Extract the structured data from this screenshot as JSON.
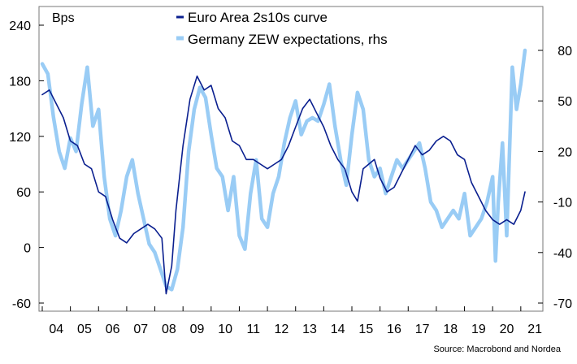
{
  "chart_data": {
    "type": "line",
    "unit_label": "Bps",
    "source": "Source: Macrobond and Nordea",
    "x_ticks": [
      "04",
      "05",
      "06",
      "07",
      "08",
      "09",
      "10",
      "11",
      "12",
      "13",
      "14",
      "15",
      "16",
      "17",
      "18",
      "19",
      "20",
      "21"
    ],
    "y_left": {
      "ticks": [
        -60,
        0,
        60,
        120,
        180,
        240
      ],
      "lim": [
        -60,
        240
      ]
    },
    "y_right": {
      "ticks": [
        -70,
        -40,
        -10,
        20,
        50,
        80
      ],
      "lim": [
        -70,
        90
      ]
    },
    "grid": false,
    "legend_position": "top",
    "series": [
      {
        "name": "Euro Area 2s10s curve",
        "axis": "left",
        "color": "#0a1f8f",
        "x": [
          2004.0,
          2004.25,
          2004.5,
          2004.75,
          2005.0,
          2005.25,
          2005.5,
          2005.75,
          2006.0,
          2006.25,
          2006.5,
          2006.75,
          2007.0,
          2007.25,
          2007.5,
          2007.75,
          2008.0,
          2008.25,
          2008.4,
          2008.6,
          2008.75,
          2009.0,
          2009.25,
          2009.5,
          2009.75,
          2010.0,
          2010.25,
          2010.5,
          2010.75,
          2011.0,
          2011.25,
          2011.5,
          2011.75,
          2012.0,
          2012.25,
          2012.5,
          2012.75,
          2013.0,
          2013.25,
          2013.5,
          2013.75,
          2014.0,
          2014.25,
          2014.5,
          2014.75,
          2015.0,
          2015.2,
          2015.4,
          2015.6,
          2015.8,
          2016.0,
          2016.25,
          2016.5,
          2016.75,
          2017.0,
          2017.25,
          2017.5,
          2017.75,
          2018.0,
          2018.25,
          2018.5,
          2018.75,
          2019.0,
          2019.25,
          2019.5,
          2019.75,
          2020.0,
          2020.25,
          2020.5,
          2020.75,
          2021.0,
          2021.15
        ],
        "values": [
          165,
          170,
          155,
          140,
          115,
          110,
          90,
          85,
          60,
          55,
          30,
          10,
          5,
          15,
          20,
          25,
          20,
          10,
          -50,
          -20,
          40,
          110,
          160,
          185,
          170,
          175,
          150,
          140,
          115,
          110,
          95,
          95,
          90,
          85,
          90,
          95,
          110,
          130,
          150,
          160,
          145,
          130,
          110,
          95,
          85,
          60,
          50,
          85,
          90,
          95,
          75,
          60,
          65,
          80,
          95,
          110,
          100,
          105,
          115,
          120,
          115,
          100,
          95,
          70,
          55,
          40,
          30,
          25,
          30,
          25,
          40,
          60
        ]
      },
      {
        "name": "Germany ZEW expectations, rhs",
        "axis": "right",
        "color": "#99ccf5",
        "x": [
          2004.0,
          2004.2,
          2004.4,
          2004.6,
          2004.8,
          2005.0,
          2005.2,
          2005.4,
          2005.6,
          2005.8,
          2006.0,
          2006.2,
          2006.4,
          2006.6,
          2006.8,
          2007.0,
          2007.2,
          2007.4,
          2007.6,
          2007.8,
          2008.0,
          2008.2,
          2008.4,
          2008.6,
          2008.8,
          2009.0,
          2009.2,
          2009.4,
          2009.6,
          2009.8,
          2010.0,
          2010.2,
          2010.4,
          2010.6,
          2010.8,
          2011.0,
          2011.2,
          2011.4,
          2011.6,
          2011.8,
          2012.0,
          2012.2,
          2012.4,
          2012.6,
          2012.8,
          2013.0,
          2013.2,
          2013.4,
          2013.6,
          2013.8,
          2014.0,
          2014.2,
          2014.4,
          2014.6,
          2014.8,
          2015.0,
          2015.2,
          2015.4,
          2015.6,
          2015.8,
          2016.0,
          2016.2,
          2016.4,
          2016.6,
          2016.8,
          2017.0,
          2017.2,
          2017.4,
          2017.6,
          2017.8,
          2018.0,
          2018.2,
          2018.4,
          2018.6,
          2018.8,
          2019.0,
          2019.2,
          2019.4,
          2019.6,
          2019.8,
          2020.0,
          2020.1,
          2020.2,
          2020.35,
          2020.5,
          2020.7,
          2020.85,
          2021.0,
          2021.15
        ],
        "values": [
          72,
          66,
          40,
          20,
          10,
          28,
          20,
          48,
          70,
          35,
          45,
          5,
          -20,
          -30,
          -15,
          5,
          15,
          -5,
          -20,
          -35,
          -40,
          -50,
          -60,
          -62,
          -50,
          -25,
          20,
          45,
          58,
          52,
          30,
          10,
          5,
          -15,
          5,
          -30,
          -38,
          -5,
          15,
          -20,
          -25,
          -5,
          5,
          25,
          40,
          50,
          30,
          38,
          40,
          38,
          48,
          60,
          35,
          15,
          0,
          30,
          55,
          45,
          15,
          5,
          10,
          -5,
          5,
          15,
          10,
          15,
          20,
          25,
          10,
          -10,
          -15,
          -25,
          -20,
          -15,
          -20,
          -5,
          -30,
          -25,
          -20,
          -10,
          5,
          -45,
          -10,
          25,
          -30,
          70,
          45,
          60,
          80
        ]
      }
    ]
  }
}
